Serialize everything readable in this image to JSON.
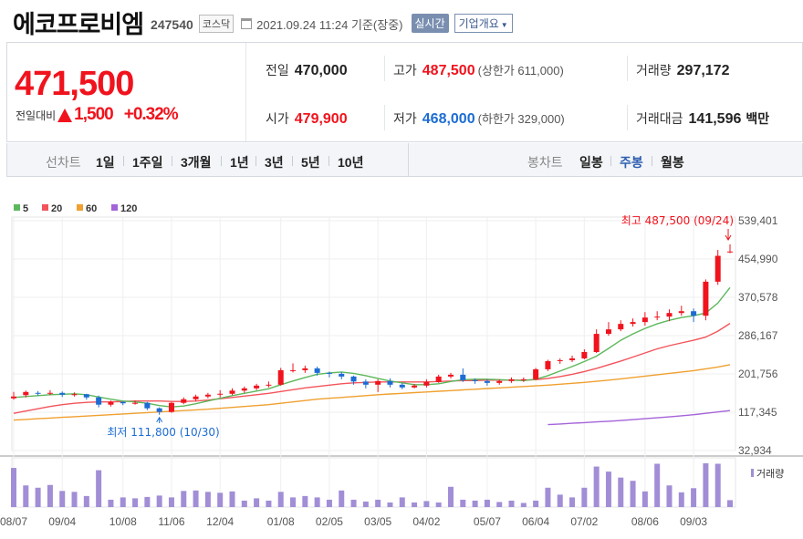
{
  "header": {
    "company_name": "에코프로비엠",
    "code": "247540",
    "market": "코스닥",
    "timestamp": "2021.09.24 11:24 기준(장중)",
    "realtime_button": "실시간",
    "company_info_button": "기업개요"
  },
  "price": {
    "current": "471,500",
    "change_label": "전일대비",
    "change_value": "1,500",
    "change_pct": "+0.32%"
  },
  "quote": {
    "prev_close": {
      "label": "전일",
      "value": "470,000"
    },
    "high": {
      "label": "고가",
      "value": "487,500",
      "sub": "(상한가 611,000)"
    },
    "volume": {
      "label": "거래량",
      "value": "297,172"
    },
    "open": {
      "label": "시가",
      "value": "479,900"
    },
    "low": {
      "label": "저가",
      "value": "468,000",
      "sub": "(하한가 329,000)"
    },
    "amount": {
      "label": "거래대금",
      "value": "141,596",
      "unit": "백만"
    }
  },
  "periods": {
    "line_label": "선차트",
    "line_items": [
      "1일",
      "1주일",
      "3개월",
      "1년",
      "3년",
      "5년",
      "10년"
    ],
    "candle_label": "봉차트",
    "candle_items": [
      "일봉",
      "주봉",
      "월봉"
    ],
    "active_candle": "주봉"
  },
  "colors": {
    "up": "#f0131d",
    "down": "#1c6cd4",
    "ma5": "#5cb85c",
    "ma20": "#f2545b",
    "ma60": "#f0a030",
    "ma120": "#a463d8",
    "volume": "#a18ed6"
  },
  "chart_data": {
    "type": "candlestick",
    "legend": [
      "5",
      "20",
      "60",
      "120"
    ],
    "y_ticks": [
      "539,401",
      "454,990",
      "370,578",
      "286,167",
      "201,756",
      "117,345",
      "32,934"
    ],
    "y_tick_values": [
      539401,
      454990,
      370578,
      286167,
      201756,
      117345,
      32934
    ],
    "ylim": [
      32934,
      539401
    ],
    "x_ticks": [
      "08/07",
      "09/04",
      "10/08",
      "11/06",
      "12/04",
      "01/08",
      "02/05",
      "03/05",
      "04/02",
      "05/07",
      "06/04",
      "07/02",
      "08/06",
      "09/03"
    ],
    "x_tick_index": [
      0,
      4,
      9,
      13,
      17,
      22,
      26,
      30,
      34,
      39,
      43,
      47,
      52,
      56
    ],
    "max_annotation": "최고 487,500 (09/24)",
    "max_index": 59,
    "min_annotation": "최저 111,800 (10/30)",
    "min_index": 12,
    "volume_label": "거래량",
    "candles": [
      [
        148000,
        152000,
        162000,
        145000
      ],
      [
        155000,
        162000,
        165000,
        150000
      ],
      [
        160000,
        158000,
        164000,
        154000
      ],
      [
        158000,
        160000,
        166000,
        155000
      ],
      [
        160000,
        156000,
        163000,
        151000
      ],
      [
        156000,
        157000,
        161000,
        152000
      ],
      [
        157000,
        150000,
        158000,
        145000
      ],
      [
        150000,
        134000,
        154000,
        128000
      ],
      [
        134000,
        140000,
        143000,
        130000
      ],
      [
        140000,
        137000,
        141000,
        133000
      ],
      [
        137000,
        138000,
        143000,
        134000
      ],
      [
        138000,
        126000,
        140000,
        122000
      ],
      [
        126000,
        118000,
        128000,
        111800
      ],
      [
        118000,
        138000,
        140000,
        116000
      ],
      [
        138000,
        146000,
        150000,
        135000
      ],
      [
        146000,
        152000,
        156000,
        142000
      ],
      [
        152000,
        156000,
        160000,
        148000
      ],
      [
        156000,
        158000,
        166000,
        150000
      ],
      [
        158000,
        165000,
        170000,
        155000
      ],
      [
        165000,
        170000,
        174000,
        160000
      ],
      [
        170000,
        176000,
        180000,
        166000
      ],
      [
        176000,
        178000,
        185000,
        172000
      ],
      [
        178000,
        210000,
        215000,
        176000
      ],
      [
        210000,
        210000,
        225000,
        205000
      ],
      [
        210000,
        214000,
        220000,
        204000
      ],
      [
        214000,
        204000,
        218000,
        198000
      ],
      [
        204000,
        202000,
        207000,
        194000
      ],
      [
        202000,
        196000,
        206000,
        190000
      ],
      [
        196000,
        185000,
        198000,
        178000
      ],
      [
        185000,
        178000,
        190000,
        170000
      ],
      [
        178000,
        186000,
        190000,
        162000
      ],
      [
        186000,
        178000,
        192000,
        172000
      ],
      [
        178000,
        172000,
        182000,
        168000
      ],
      [
        172000,
        176000,
        180000,
        170000
      ],
      [
        176000,
        184000,
        190000,
        172000
      ],
      [
        184000,
        196000,
        200000,
        182000
      ],
      [
        196000,
        200000,
        204000,
        192000
      ],
      [
        200000,
        188000,
        214000,
        184000
      ],
      [
        188000,
        186000,
        192000,
        180000
      ],
      [
        186000,
        182000,
        190000,
        176000
      ],
      [
        182000,
        186000,
        190000,
        178000
      ],
      [
        186000,
        190000,
        194000,
        182000
      ],
      [
        190000,
        190000,
        194000,
        184000
      ],
      [
        190000,
        212000,
        215000,
        188000
      ],
      [
        212000,
        230000,
        233000,
        208000
      ],
      [
        230000,
        232000,
        236000,
        224000
      ],
      [
        232000,
        236000,
        242000,
        228000
      ],
      [
        236000,
        250000,
        256000,
        234000
      ],
      [
        250000,
        290000,
        300000,
        248000
      ],
      [
        290000,
        300000,
        316000,
        286000
      ],
      [
        300000,
        312000,
        320000,
        296000
      ],
      [
        312000,
        316000,
        324000,
        306000
      ],
      [
        316000,
        326000,
        338000,
        308000
      ],
      [
        326000,
        328000,
        340000,
        320000
      ],
      [
        328000,
        336000,
        344000,
        318000
      ],
      [
        336000,
        340000,
        352000,
        330000
      ],
      [
        340000,
        330000,
        346000,
        316000
      ],
      [
        330000,
        405000,
        410000,
        320000
      ],
      [
        405000,
        462000,
        475000,
        398000
      ],
      [
        470000,
        471500,
        487500,
        468000
      ]
    ],
    "ma5": [
      150000,
      152000,
      154000,
      156000,
      157000,
      158000,
      156000,
      151000,
      146000,
      142000,
      140000,
      137000,
      132000,
      129000,
      131000,
      136000,
      142000,
      148000,
      154000,
      159000,
      164000,
      169000,
      178000,
      186000,
      194000,
      201000,
      204000,
      206000,
      203000,
      198000,
      192000,
      186000,
      182000,
      178000,
      178000,
      180000,
      185000,
      189000,
      190000,
      190000,
      189000,
      188000,
      187000,
      190000,
      198000,
      208000,
      218000,
      229000,
      241000,
      258000,
      276000,
      290000,
      302000,
      312000,
      320000,
      326000,
      330000,
      336000,
      358000,
      392000
    ],
    "ma20": [
      115000,
      120000,
      125000,
      130000,
      134000,
      137000,
      139000,
      140000,
      140000,
      141000,
      142000,
      142000,
      142000,
      141000,
      141000,
      142000,
      144000,
      147000,
      150000,
      153000,
      156000,
      159000,
      163000,
      167000,
      171000,
      174000,
      177000,
      180000,
      182000,
      183000,
      184000,
      184000,
      184000,
      184000,
      184000,
      185000,
      186000,
      187000,
      187000,
      188000,
      188000,
      188000,
      188000,
      189000,
      192000,
      196000,
      201000,
      207000,
      214000,
      222000,
      230000,
      239000,
      248000,
      257000,
      264000,
      270000,
      276000,
      283000,
      296000,
      313000
    ],
    "ma60": [
      100000,
      101500,
      103000,
      104500,
      106000,
      107500,
      109000,
      110500,
      112000,
      113500,
      115000,
      116500,
      118000,
      119500,
      121000,
      122500,
      124000,
      126000,
      128000,
      130000,
      132000,
      134000,
      137000,
      140000,
      143000,
      146000,
      148000,
      150000,
      152000,
      154000,
      156000,
      157500,
      159000,
      160500,
      162000,
      163500,
      165000,
      166500,
      168000,
      169500,
      171000,
      172500,
      174000,
      175500,
      177000,
      179000,
      181000,
      183000,
      185500,
      188000,
      191000,
      194000,
      197000,
      200000,
      203000,
      206000,
      209000,
      213000,
      217000,
      222000
    ],
    "ma120": [
      null,
      null,
      null,
      null,
      null,
      null,
      null,
      null,
      null,
      null,
      null,
      null,
      null,
      null,
      null,
      null,
      null,
      null,
      null,
      null,
      null,
      null,
      null,
      null,
      null,
      null,
      null,
      null,
      null,
      null,
      null,
      null,
      null,
      null,
      null,
      null,
      null,
      null,
      null,
      null,
      null,
      null,
      null,
      null,
      90000,
      91500,
      93000,
      94500,
      96000,
      97500,
      99000,
      101000,
      103000,
      105000,
      107000,
      109500,
      112000,
      115000,
      118000,
      121000
    ],
    "volume": [
      85,
      47,
      42,
      48,
      35,
      33,
      24,
      80,
      16,
      21,
      19,
      22,
      25,
      21,
      35,
      36,
      33,
      31,
      34,
      14,
      19,
      14,
      33,
      21,
      24,
      21,
      16,
      36,
      16,
      12,
      16,
      10,
      21,
      10,
      13,
      10,
      44,
      16,
      14,
      16,
      11,
      14,
      9,
      14,
      42,
      27,
      21,
      42,
      88,
      77,
      64,
      57,
      34,
      94,
      47,
      32,
      41,
      95,
      94,
      15
    ]
  }
}
